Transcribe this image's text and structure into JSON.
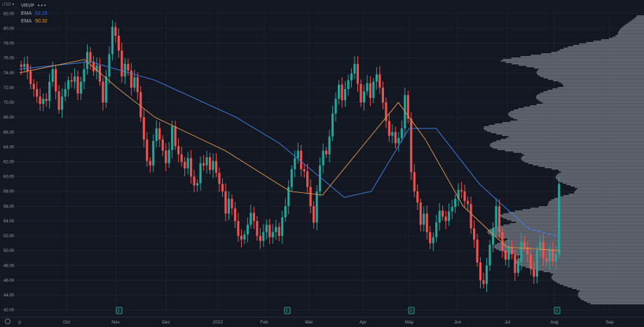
{
  "currency_label": "USD ▾",
  "legend": [
    {
      "name": "VRVP",
      "value": "• • •",
      "color": "#b2b5be"
    },
    {
      "name": "EMA",
      "value": "52.15",
      "color": "#2962ff"
    },
    {
      "name": "EMA",
      "value": "50.32",
      "color": "#f7a21b"
    }
  ],
  "colors": {
    "background": "#131722",
    "up": "#26a69a",
    "down": "#ef5350",
    "ema_slow": "#3d7fe0",
    "ema_fast": "#d9914a",
    "profile": "#878b94",
    "grid": "#1e222d",
    "axis_text": "#9598a1"
  },
  "x_axis_labels": [
    "p",
    "Oct",
    "Nov",
    "Dec",
    "2022",
    "Feb",
    "Mar",
    "Apr",
    "May",
    "Jun",
    "Jul",
    "Aug",
    "Sep"
  ],
  "y_axis_labels": [
    "82.00",
    "80.00",
    "78.00",
    "76.00",
    "74.00",
    "72.00",
    "70.00",
    "68.00",
    "66.00",
    "64.00",
    "62.00",
    "60.00",
    "58.00",
    "56.00",
    "54.00",
    "52.00",
    "50.00",
    "48.00",
    "46.00",
    "44.00",
    "42.00"
  ],
  "earnings_marker": "E",
  "chart_data": {
    "type": "candlestick",
    "x_label": "",
    "y_label": "",
    "y_range": [
      41.5,
      82.5
    ],
    "price_scale_side": "left",
    "indicators": [
      "VRVP",
      "EMA 52.15",
      "EMA 50.32"
    ],
    "earnings_events": [
      "early Nov 2021",
      "early Feb 2022",
      "early May 2022",
      "early Aug 2022"
    ],
    "closes": [
      74.8,
      75.2,
      74.2,
      72.5,
      71.8,
      70.8,
      69.8,
      70.5,
      70.2,
      72.8,
      74.5,
      71.5,
      69.0,
      70.8,
      71.8,
      73.0,
      72.8,
      73.5,
      71.2,
      72.8,
      74.5,
      76.8,
      75.5,
      74.2,
      75.0,
      72.8,
      70.0,
      73.5,
      76.5,
      80.2,
      79.0,
      77.0,
      73.5,
      75.2,
      74.3,
      72.0,
      73.4,
      71.4,
      68.0,
      65.0,
      62.1,
      61.5,
      64.8,
      66.5,
      65.0,
      63.5,
      61.8,
      63.6,
      66.8,
      64.1,
      63.0,
      62.0,
      61.1,
      62.5,
      60.0,
      58.8,
      59.1,
      61.8,
      61.5,
      62.6,
      60.9,
      62.1,
      60.5,
      59.0,
      58.0,
      55.0,
      57.0,
      55.7,
      54.0,
      52.0,
      51.5,
      52.2,
      53.5,
      55.1,
      54.0,
      52.0,
      51.3,
      52.5,
      53.5,
      51.8,
      52.5,
      53.2,
      52.0,
      54.5,
      56.0,
      58.6,
      61.0,
      62.5,
      63.5,
      61.0,
      60.7,
      58.6,
      56.0,
      53.8,
      58.0,
      61.5,
      63.5,
      63.0,
      65.4,
      68.5,
      70.5,
      72.4,
      70.3,
      71.8,
      73.0,
      73.9,
      75.2,
      72.5,
      70.0,
      71.5,
      72.6,
      70.6,
      72.8,
      73.8,
      72.0,
      70.0,
      67.5,
      65.5,
      66.0,
      64.5,
      65.2,
      66.5,
      71.0,
      67.8,
      60.6,
      58.0,
      56.5,
      53.5,
      55.0,
      52.5,
      51.0,
      51.8,
      53.8,
      55.4,
      54.6,
      54.0,
      55.3,
      55.9,
      57.0,
      58.2,
      58.0,
      56.7,
      56.3,
      53.0,
      51.5,
      48.4,
      46.0,
      45.5,
      48.0,
      50.8,
      53.0,
      56.0,
      52.5,
      50.0,
      48.8,
      50.5,
      49.5,
      47.0,
      48.5,
      51.2,
      50.5,
      49.5,
      47.5,
      46.5,
      50.0,
      51.2,
      49.0,
      48.5,
      50.2,
      48.5,
      49.5,
      59.0
    ],
    "ema_slow_path": [
      [
        74.5,
        0
      ],
      [
        75.5,
        0.13
      ],
      [
        73.0,
        0.25
      ],
      [
        68.0,
        0.4
      ],
      [
        64.5,
        0.48
      ],
      [
        57.2,
        0.6
      ],
      [
        58.0,
        0.65
      ],
      [
        66.5,
        0.72
      ],
      [
        66.5,
        0.77
      ],
      [
        59.0,
        0.85
      ],
      [
        53.0,
        0.94
      ],
      [
        51.8,
        1.0
      ]
    ],
    "ema_fast_path": [
      [
        74.0,
        0
      ],
      [
        75.8,
        0.12
      ],
      [
        72.0,
        0.18
      ],
      [
        68.0,
        0.25
      ],
      [
        63.5,
        0.38
      ],
      [
        58.0,
        0.5
      ],
      [
        57.5,
        0.56
      ],
      [
        70.0,
        0.7
      ],
      [
        65.0,
        0.75
      ],
      [
        56.0,
        0.82
      ],
      [
        50.5,
        0.9
      ],
      [
        50.0,
        1.0
      ]
    ],
    "volume_profile_extent": [
      0.05,
      0.22,
      0.9,
      0.55,
      0.75,
      1.0,
      0.95,
      0.6,
      0.45,
      0.9,
      1.0,
      0.85,
      0.55,
      0.35
    ]
  }
}
